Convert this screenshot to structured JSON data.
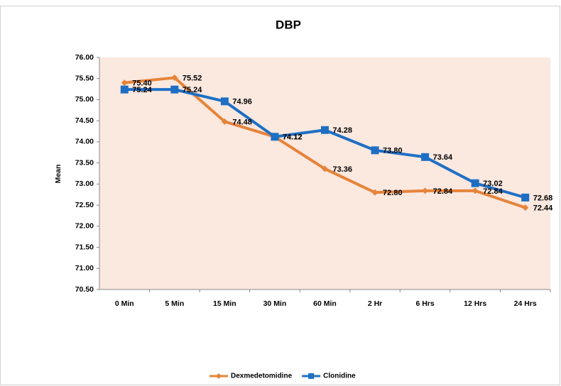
{
  "chart_data": {
    "type": "line",
    "title": "DBP",
    "y_label": "Mean",
    "categories": [
      "0 Min",
      "5 Min",
      "15 Min",
      "30 Min",
      "60 Min",
      "2 Hr",
      "6 Hrs",
      "12 Hrs",
      "24 Hrs"
    ],
    "series": [
      {
        "name": "Dexmedetomidine",
        "color": "#e5843a",
        "marker": "diamond",
        "values": [
          75.4,
          75.52,
          74.48,
          74.12,
          73.36,
          72.8,
          72.84,
          72.84,
          72.44
        ],
        "value_labels": [
          "75.40",
          "75.52",
          "74.48",
          "74.12",
          "73.36",
          "72.80",
          "72.84",
          "72.84",
          "72.44"
        ]
      },
      {
        "name": "Clonidine",
        "color": "#1e6fc4",
        "marker": "square",
        "values": [
          75.24,
          75.24,
          74.96,
          74.12,
          74.28,
          73.8,
          73.64,
          73.02,
          72.68
        ],
        "value_labels": [
          "75.24",
          "75.24",
          "74.96",
          "74.12",
          "74.28",
          "73.80",
          "73.64",
          "73.02",
          "72.68"
        ]
      }
    ],
    "ylim": [
      70.5,
      76
    ],
    "yticks": [
      {
        "value": 70.5,
        "label": "70.50"
      },
      {
        "value": 71,
        "label": "71.00"
      },
      {
        "value": 71.5,
        "label": "71.50"
      },
      {
        "value": 72,
        "label": "72.00"
      },
      {
        "value": 72.5,
        "label": "72.50"
      },
      {
        "value": 73,
        "label": "73.00"
      },
      {
        "value": 73.5,
        "label": "73.50"
      },
      {
        "value": 74,
        "label": "74.00"
      },
      {
        "value": 74.5,
        "label": "74.50"
      },
      {
        "value": 75,
        "label": "75.00"
      },
      {
        "value": 75.5,
        "label": "75.50"
      },
      {
        "value": 76,
        "label": "76.00"
      }
    ],
    "legend": "bottom",
    "grid": false
  }
}
